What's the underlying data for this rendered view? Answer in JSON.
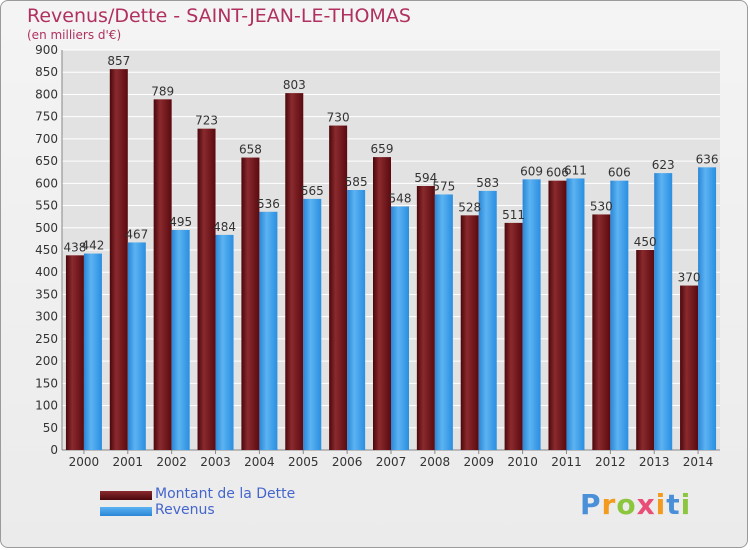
{
  "header": {
    "title": "Revenus/Dette - SAINT-JEAN-LE-THOMAS",
    "subtitle": "(en milliers d'€)"
  },
  "colors": {
    "debt": "#6b0f14",
    "revenue": "#3a9be6",
    "title": "#b03060",
    "legend_text": "#4466cc",
    "grid": "#ffffff",
    "axis_text": "#333333"
  },
  "logo": {
    "text": "Proxiti"
  },
  "chart_data": {
    "type": "bar",
    "title": "Revenus/Dette - SAINT-JEAN-LE-THOMAS",
    "subtitle": "(en milliers d'€)",
    "xlabel": "",
    "ylabel": "",
    "ylim": [
      0,
      900
    ],
    "yticks": [
      0,
      50,
      100,
      150,
      200,
      250,
      300,
      350,
      400,
      450,
      500,
      550,
      600,
      650,
      700,
      750,
      800,
      850,
      900
    ],
    "grid": true,
    "legend_position": "bottom-left",
    "categories": [
      "2000",
      "2001",
      "2002",
      "2003",
      "2004",
      "2005",
      "2006",
      "2007",
      "2008",
      "2009",
      "2010",
      "2011",
      "2012",
      "2013",
      "2014"
    ],
    "series": [
      {
        "name": "Montant de la Dette",
        "values": [
          438,
          857,
          789,
          723,
          658,
          803,
          730,
          659,
          594,
          528,
          511,
          606,
          530,
          450,
          370
        ]
      },
      {
        "name": "Revenus",
        "values": [
          442,
          467,
          495,
          484,
          536,
          565,
          585,
          548,
          575,
          583,
          609,
          611,
          606,
          623,
          636
        ]
      }
    ]
  }
}
